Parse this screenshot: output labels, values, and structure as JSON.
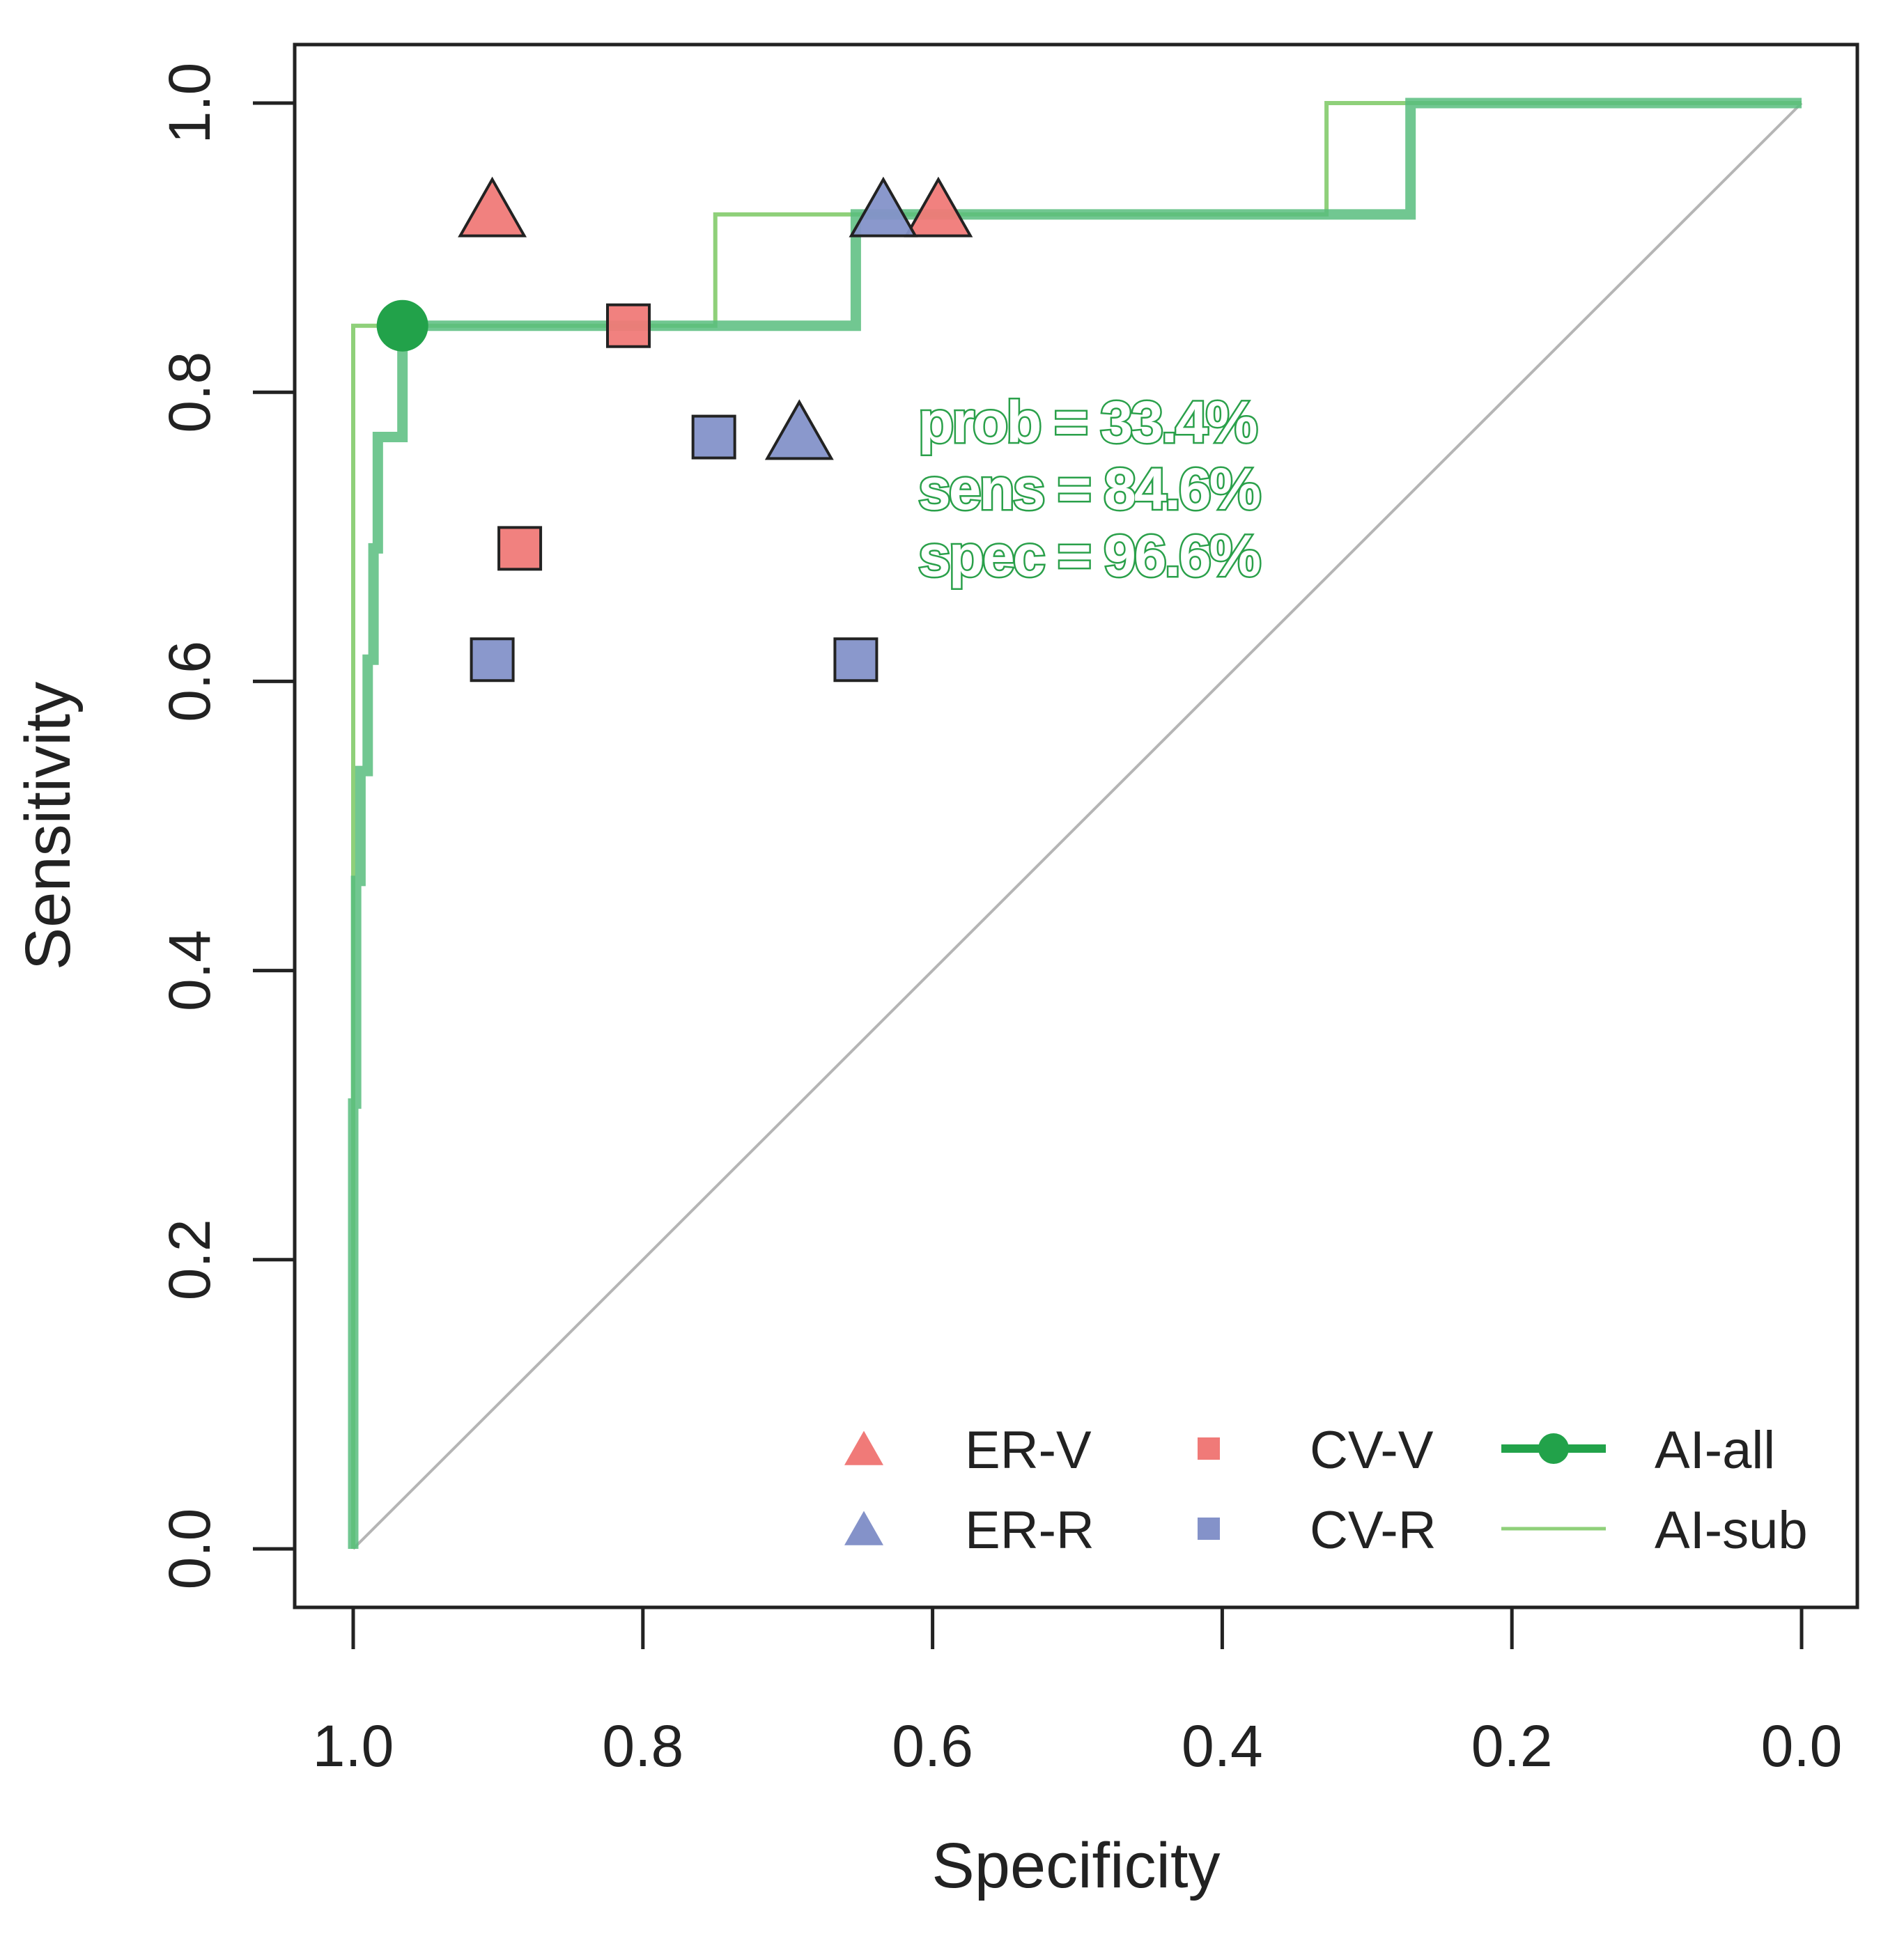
{
  "chart_data": {
    "type": "line",
    "title": "",
    "xlabel": "Specificity",
    "ylabel": "Sensitivity",
    "xlim": [
      1.0,
      0.0
    ],
    "ylim": [
      0.0,
      1.0
    ],
    "x_reversed": true,
    "xticks": [
      1.0,
      0.8,
      0.6,
      0.4,
      0.2,
      0.0
    ],
    "xtick_labels": [
      "1.0",
      "0.8",
      "0.6",
      "0.4",
      "0.2",
      "0.0"
    ],
    "yticks": [
      0.0,
      0.2,
      0.4,
      0.6,
      0.8,
      1.0
    ],
    "ytick_labels": [
      "0.0",
      "0.2",
      "0.4",
      "0.6",
      "0.8",
      "1.0"
    ],
    "grid": false,
    "diagonal_reference": true,
    "series": [
      {
        "name": "AI-sub",
        "kind": "roc-line",
        "color": "#8fd07a",
        "specificity": [
          1.0,
          1.0,
          1.0,
          0.75,
          0.75,
          0.328,
          0.328,
          0.0
        ],
        "sensitivity": [
          0.0,
          0.846,
          0.846,
          0.846,
          0.923,
          0.923,
          1.0,
          1.0
        ]
      },
      {
        "name": "AI-all",
        "kind": "roc-line",
        "color": "#58bd7e",
        "specificity": [
          1.0,
          1.0,
          0.998,
          0.998,
          0.995,
          0.995,
          0.99,
          0.99,
          0.986,
          0.986,
          0.983,
          0.983,
          0.966,
          0.966,
          0.653,
          0.653,
          0.27,
          0.27,
          0.0
        ],
        "sensitivity": [
          0.0,
          0.308,
          0.308,
          0.462,
          0.462,
          0.538,
          0.538,
          0.615,
          0.615,
          0.692,
          0.692,
          0.769,
          0.769,
          0.846,
          0.846,
          0.923,
          0.923,
          1.0,
          1.0
        ]
      },
      {
        "name": "ER-V",
        "kind": "points",
        "marker": "triangle",
        "color": "#f07a78",
        "points": [
          {
            "specificity": 0.904,
            "sensitivity": 0.923
          },
          {
            "specificity": 0.596,
            "sensitivity": 0.923
          }
        ]
      },
      {
        "name": "ER-R",
        "kind": "points",
        "marker": "triangle",
        "color": "#8492c9",
        "points": [
          {
            "specificity": 0.634,
            "sensitivity": 0.923
          },
          {
            "specificity": 0.692,
            "sensitivity": 0.769
          }
        ]
      },
      {
        "name": "CV-V",
        "kind": "points",
        "marker": "square",
        "color": "#f07a78",
        "points": [
          {
            "specificity": 0.81,
            "sensitivity": 0.846
          },
          {
            "specificity": 0.885,
            "sensitivity": 0.692
          }
        ]
      },
      {
        "name": "CV-R",
        "kind": "points",
        "marker": "square",
        "color": "#8492c9",
        "points": [
          {
            "specificity": 0.751,
            "sensitivity": 0.769
          },
          {
            "specificity": 0.904,
            "sensitivity": 0.615
          },
          {
            "specificity": 0.653,
            "sensitivity": 0.615
          }
        ]
      }
    ],
    "optimal_point": {
      "series": "AI-all",
      "specificity": 0.966,
      "sensitivity": 0.846,
      "color": "#22a24a"
    },
    "annotations": [
      "prob = 33.4%",
      "sens = 84.6%",
      "spec = 96.6%"
    ],
    "legend": {
      "placement": "bottom-right",
      "entries": [
        "ER-V",
        "CV-V",
        "AI-all",
        "ER-R",
        "CV-R",
        "AI-sub"
      ]
    }
  },
  "colors": {
    "axis": "#222222",
    "diagonal": "#b5b5b5",
    "annotation_stroke": "#2aa04a",
    "point_outline": "#222222"
  }
}
